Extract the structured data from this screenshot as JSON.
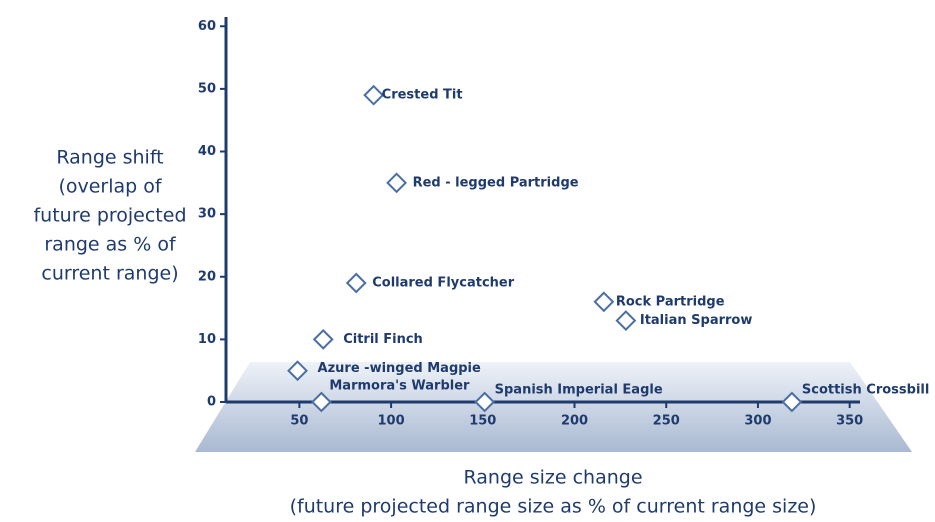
{
  "chart_data": {
    "type": "scatter",
    "x_label": [
      "Range size change",
      "(future projected range size as % of current range size)"
    ],
    "y_label": [
      "Range shift",
      "(overlap of",
      "future projected",
      "range as % of",
      "current range)"
    ],
    "labels": [
      "Crested Tit",
      "Red - legged Partridge",
      "Collared Flycatcher",
      "Citril Finch",
      "Azure -winged Magpie",
      "Marmora's Warbler",
      "Spanish Imperial Eagle",
      "Rock Partridge",
      "Italian Sparrow",
      "Scottish Crossbill"
    ],
    "x": [
      90.5,
      103,
      81,
      63,
      49,
      62,
      151,
      216,
      228,
      318.5
    ],
    "values": [
      49,
      35,
      19,
      10,
      5,
      0,
      0,
      16,
      13,
      0
    ],
    "color": "#4a6fa5",
    "xlim": [
      10,
      360
    ],
    "xticks": [
      50,
      100,
      150,
      200,
      250,
      300,
      350
    ],
    "ylim": [
      0,
      61
    ],
    "yticks": [
      0,
      10,
      20,
      30,
      40,
      50,
      60
    ]
  }
}
